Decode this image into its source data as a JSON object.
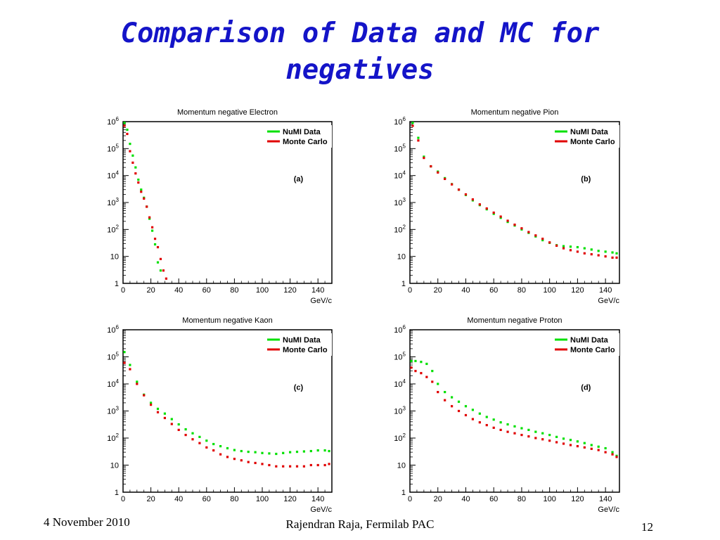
{
  "slide": {
    "title_line1": "Comparison of Data and MC for",
    "title_line2": "negatives",
    "footer_date": "4 November 2010",
    "footer_author": "Rajendran Raja, Fermilab PAC",
    "page_number": "12"
  },
  "chart_data": [
    {
      "type": "scatter",
      "title": "Momentum  negative Electron",
      "panel_label": "(a)",
      "xlabel": "GeV/c",
      "xlim": [
        0,
        150
      ],
      "ylim": [
        1,
        1000000
      ],
      "yscale": "log",
      "xticks": [
        0,
        20,
        40,
        60,
        80,
        100,
        120,
        140
      ],
      "yticks": [
        1,
        10,
        100,
        1000,
        10000,
        100000,
        1000000
      ],
      "legend_position": "top-right",
      "series": [
        {
          "name": "NuMI Data",
          "color": "#00e000",
          "x": [
            1,
            3,
            5,
            7,
            9,
            11,
            13,
            15,
            17,
            19,
            21,
            23,
            25,
            27
          ],
          "y": [
            900000,
            500000,
            150000,
            55000,
            20000,
            7000,
            3000,
            1500,
            700,
            250,
            90,
            28,
            6,
            3
          ]
        },
        {
          "name": "Monte Carlo",
          "color": "#e00000",
          "x": [
            1,
            3,
            5,
            7,
            9,
            11,
            13,
            15,
            17,
            19,
            21,
            23,
            25,
            27,
            29,
            31
          ],
          "y": [
            700000,
            350000,
            80000,
            30000,
            12000,
            5500,
            2500,
            1400,
            700,
            280,
            120,
            45,
            22,
            8,
            3,
            1.5
          ]
        }
      ]
    },
    {
      "type": "scatter",
      "title": "Momentum  negative Pion",
      "panel_label": "(b)",
      "xlabel": "GeV/c",
      "xlim": [
        0,
        150
      ],
      "ylim": [
        1,
        1000000
      ],
      "yscale": "log",
      "xticks": [
        0,
        20,
        40,
        60,
        80,
        100,
        120,
        140
      ],
      "yticks": [
        1,
        10,
        100,
        1000,
        10000,
        100000,
        1000000
      ],
      "legend_position": "top-right",
      "series": [
        {
          "name": "NuMI Data",
          "color": "#00e000",
          "x": [
            2,
            6,
            10,
            15,
            20,
            25,
            30,
            35,
            40,
            45,
            50,
            55,
            60,
            65,
            70,
            75,
            80,
            85,
            90,
            95,
            100,
            105,
            110,
            115,
            120,
            125,
            130,
            135,
            140,
            145,
            148
          ],
          "y": [
            900000,
            250000,
            50000,
            22000,
            14000,
            8000,
            4800,
            3000,
            1900,
            1200,
            800,
            560,
            380,
            270,
            190,
            140,
            100,
            75,
            55,
            40,
            32,
            26,
            24,
            23,
            22,
            20,
            18,
            16,
            15,
            14,
            13
          ]
        },
        {
          "name": "Monte Carlo",
          "color": "#e00000",
          "x": [
            2,
            6,
            10,
            15,
            20,
            25,
            30,
            35,
            40,
            45,
            50,
            55,
            60,
            65,
            70,
            75,
            80,
            85,
            90,
            95,
            100,
            105,
            110,
            115,
            120,
            125,
            130,
            135,
            140,
            145,
            148
          ],
          "y": [
            700000,
            200000,
            45000,
            22000,
            13000,
            7500,
            4700,
            3000,
            2000,
            1300,
            850,
            600,
            420,
            300,
            210,
            150,
            110,
            80,
            60,
            45,
            33,
            25,
            20,
            17,
            15,
            13,
            12,
            11,
            10,
            9,
            9
          ]
        }
      ]
    },
    {
      "type": "scatter",
      "title": "Momentum  negative Kaon",
      "panel_label": "(c)",
      "xlabel": "GeV/c",
      "xlim": [
        0,
        150
      ],
      "ylim": [
        1,
        1000000
      ],
      "yscale": "log",
      "xticks": [
        0,
        20,
        40,
        60,
        80,
        100,
        120,
        140
      ],
      "yticks": [
        1,
        10,
        100,
        1000,
        10000,
        100000,
        1000000
      ],
      "legend_position": "top-right",
      "series": [
        {
          "name": "NuMI Data",
          "color": "#00e000",
          "x": [
            1,
            5,
            10,
            15,
            20,
            25,
            30,
            35,
            40,
            45,
            50,
            55,
            60,
            65,
            70,
            75,
            80,
            85,
            90,
            95,
            100,
            105,
            110,
            115,
            120,
            125,
            130,
            135,
            140,
            145,
            148
          ],
          "y": [
            150000,
            50000,
            12000,
            4000,
            2000,
            1200,
            800,
            500,
            320,
            210,
            150,
            110,
            80,
            60,
            50,
            42,
            36,
            33,
            31,
            30,
            28,
            27,
            26,
            28,
            30,
            31,
            32,
            33,
            35,
            35,
            33
          ]
        },
        {
          "name": "Monte Carlo",
          "color": "#e00000",
          "x": [
            1,
            5,
            10,
            15,
            20,
            25,
            30,
            35,
            40,
            45,
            50,
            55,
            60,
            65,
            70,
            75,
            80,
            85,
            90,
            95,
            100,
            105,
            110,
            115,
            120,
            125,
            130,
            135,
            140,
            145,
            148
          ],
          "y": [
            60000,
            35000,
            10000,
            3800,
            1700,
            900,
            550,
            330,
            200,
            130,
            90,
            65,
            45,
            35,
            25,
            20,
            17,
            15,
            13,
            12,
            11,
            10,
            9,
            9,
            9,
            9,
            9,
            10,
            10,
            10,
            11
          ]
        }
      ]
    },
    {
      "type": "scatter",
      "title": "Momentum  negative Proton",
      "panel_label": "(d)",
      "xlabel": "GeV/c",
      "xlim": [
        0,
        150
      ],
      "ylim": [
        1,
        1000000
      ],
      "yscale": "log",
      "xticks": [
        0,
        20,
        40,
        60,
        80,
        100,
        120,
        140
      ],
      "yticks": [
        1,
        10,
        100,
        1000,
        10000,
        100000,
        1000000
      ],
      "legend_position": "top-right",
      "series": [
        {
          "name": "NuMI Data",
          "color": "#00e000",
          "x": [
            1,
            4,
            8,
            12,
            16,
            20,
            25,
            30,
            35,
            40,
            45,
            50,
            55,
            60,
            65,
            70,
            75,
            80,
            85,
            90,
            95,
            100,
            105,
            110,
            115,
            120,
            125,
            130,
            135,
            140,
            145,
            148
          ],
          "y": [
            70000,
            70000,
            65000,
            55000,
            30000,
            10000,
            5000,
            3200,
            2200,
            1500,
            1100,
            800,
            600,
            480,
            380,
            320,
            270,
            230,
            200,
            170,
            150,
            130,
            110,
            95,
            85,
            75,
            65,
            55,
            48,
            42,
            30,
            22
          ]
        },
        {
          "name": "Monte Carlo",
          "color": "#e00000",
          "x": [
            1,
            4,
            8,
            12,
            16,
            20,
            25,
            30,
            35,
            40,
            45,
            50,
            55,
            60,
            65,
            70,
            75,
            80,
            85,
            90,
            95,
            100,
            105,
            110,
            115,
            120,
            125,
            130,
            135,
            140,
            145,
            148
          ],
          "y": [
            40000,
            30000,
            25000,
            18000,
            12000,
            5000,
            2500,
            1500,
            1000,
            700,
            500,
            380,
            300,
            240,
            200,
            170,
            150,
            130,
            115,
            100,
            90,
            80,
            70,
            62,
            55,
            50,
            45,
            40,
            36,
            30,
            25,
            20
          ]
        }
      ]
    }
  ]
}
